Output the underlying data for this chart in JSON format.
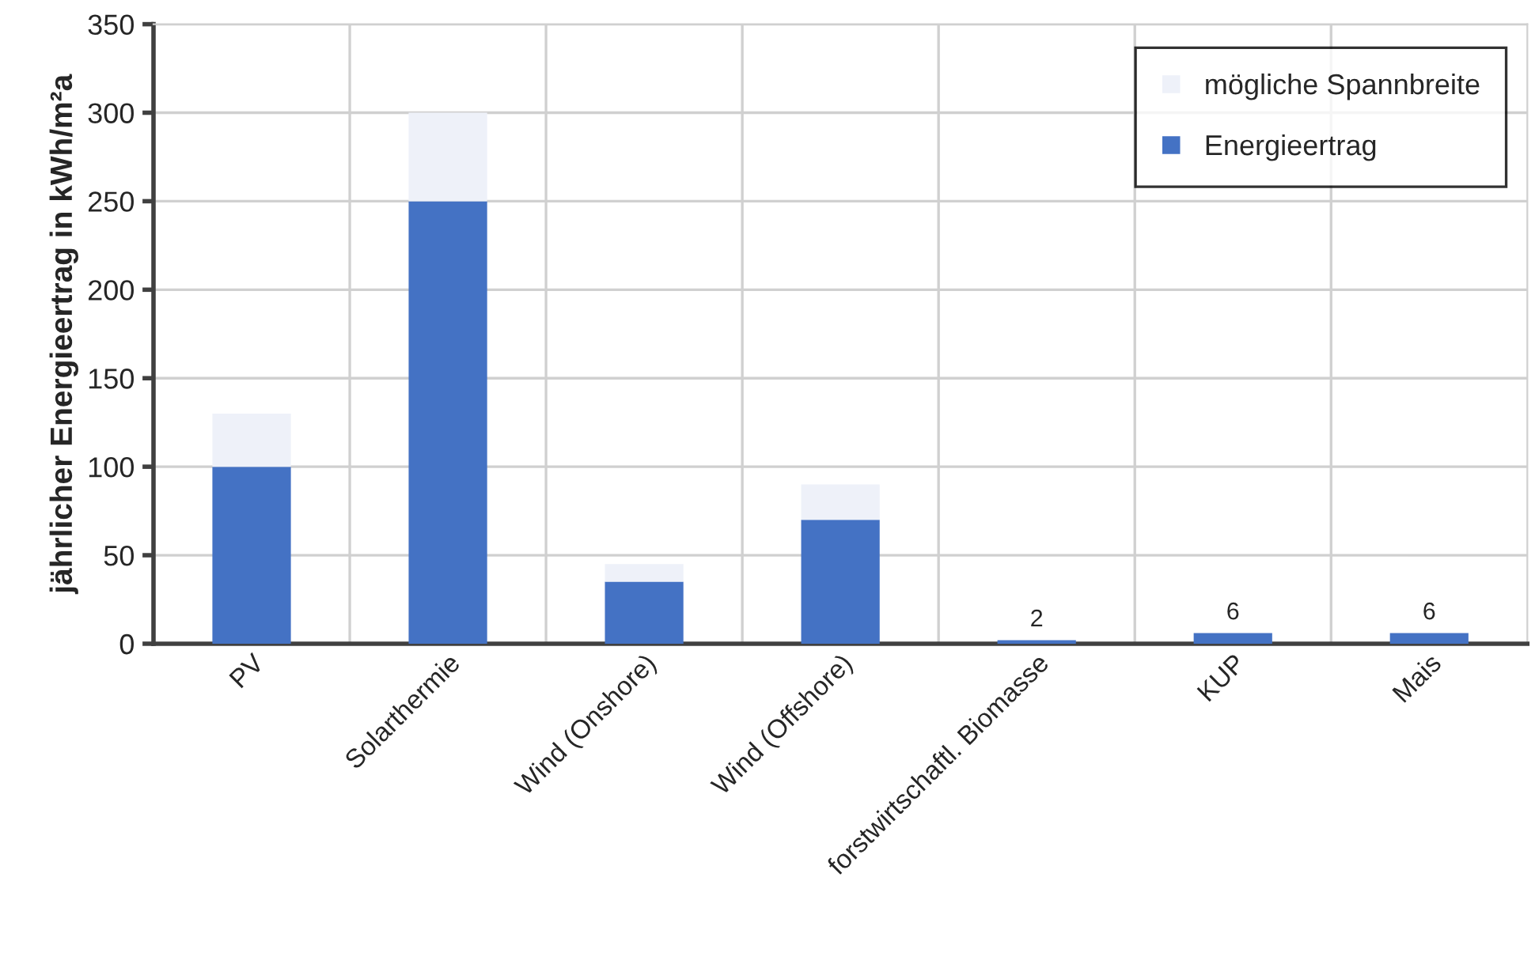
{
  "chart_data": {
    "type": "bar",
    "stacked": true,
    "ylabel": "jährlicher Energieertrag in kWh/m²a",
    "categories": [
      "PV",
      "Solarthermie",
      "Wind (Onshore)",
      "Wind (Offshore)",
      "forstwirtschaftl. Biomasse",
      "KUP",
      "Mais"
    ],
    "series": [
      {
        "name": "Energieertrag",
        "color": "#4472c4",
        "values": [
          100,
          250,
          35,
          70,
          2,
          6,
          6
        ],
        "value_labels": [
          null,
          null,
          null,
          null,
          "2",
          "6",
          "6"
        ]
      },
      {
        "name": "mögliche Spannbreite",
        "color": "#eef1f9",
        "values": [
          30,
          50,
          10,
          20,
          null,
          null,
          null
        ]
      }
    ],
    "ylim": [
      0,
      350
    ],
    "yticks": [
      0,
      50,
      100,
      150,
      200,
      250,
      300,
      350
    ],
    "grid": true,
    "legend": "top right"
  }
}
